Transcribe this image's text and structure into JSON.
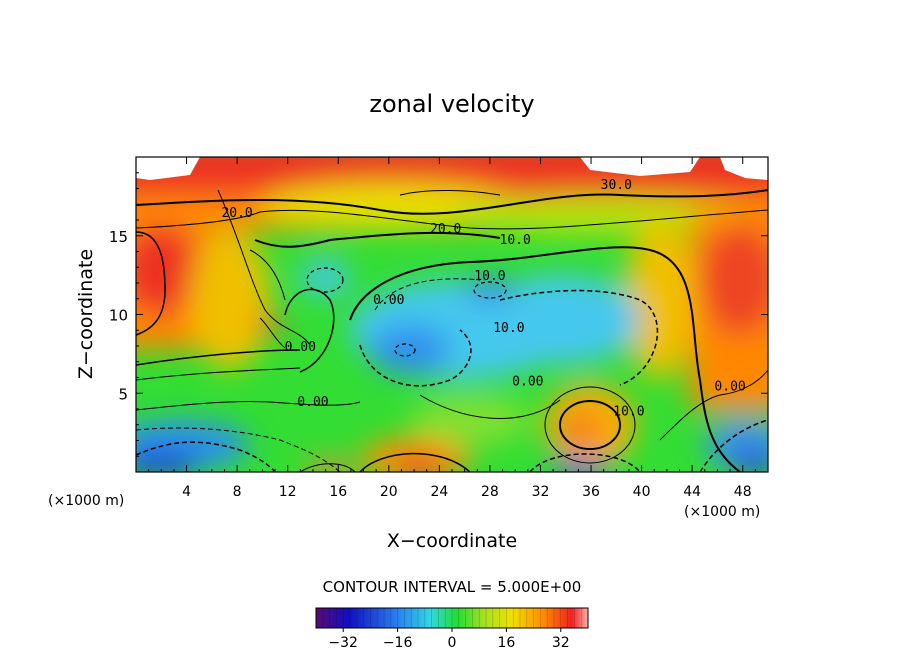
{
  "chart_data": {
    "type": "heatmap",
    "title": "zonal velocity",
    "xlabel": "X−coordinate",
    "ylabel": "Z−coordinate",
    "x_unit_label": "(×1000 m)",
    "z_unit_label": "(×1000 m)",
    "xlim": [
      0,
      50
    ],
    "ylim": [
      0,
      20
    ],
    "x_ticks": [
      4,
      8,
      12,
      16,
      20,
      24,
      28,
      32,
      36,
      40,
      44,
      48
    ],
    "y_ticks": [
      5,
      10,
      15
    ],
    "contour_interval_text": "CONTOUR INTERVAL = 5.000E+00",
    "contour_labels": [
      {
        "text": "30.0",
        "x": 38.0,
        "z": 18.3
      },
      {
        "text": "20.0",
        "x": 8.0,
        "z": 16.5
      },
      {
        "text": "20.0",
        "x": 24.5,
        "z": 15.5
      },
      {
        "text": "10.0",
        "x": 30.0,
        "z": 14.8
      },
      {
        "text": "10.0",
        "x": 28.0,
        "z": 12.5
      },
      {
        "text": "0.00",
        "x": 20.0,
        "z": 11.0
      },
      {
        "text": "10.0",
        "x": 29.5,
        "z": 9.2
      },
      {
        "text": "0.00",
        "x": 13.0,
        "z": 8.0
      },
      {
        "text": "0.00",
        "x": 14.0,
        "z": 4.5
      },
      {
        "text": "0.00",
        "x": 31.0,
        "z": 5.8
      },
      {
        "text": "10.0",
        "x": 39.0,
        "z": 3.9
      },
      {
        "text": "0.00",
        "x": 47.0,
        "z": 5.5
      }
    ],
    "colorbar": {
      "ticks": [
        -32,
        -16,
        0,
        16,
        32
      ],
      "range": [
        -40,
        40
      ]
    }
  },
  "colors": {
    "white": "#ffffff",
    "red": "#ee2222",
    "orange": "#ff9900",
    "yellow": "#e8e800",
    "green": "#22dd22",
    "cyan": "#44ccee",
    "blue": "#2244dd",
    "navy": "#1a0080"
  }
}
